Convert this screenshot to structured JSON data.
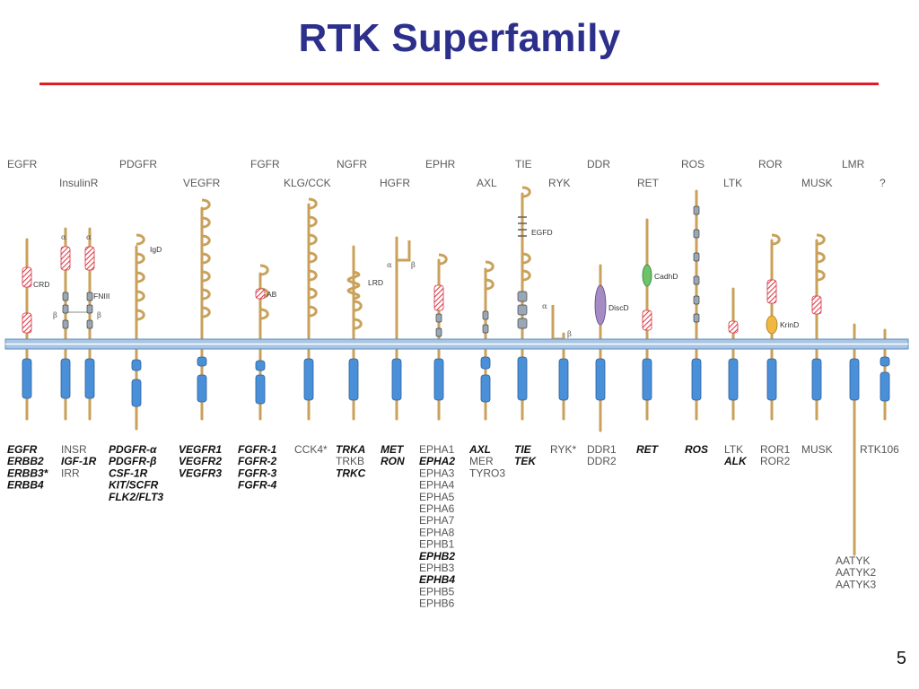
{
  "title": "RTK Superfamily",
  "page_number": "5",
  "colors": {
    "title": "#2c2f8c",
    "rule": "#e01c24",
    "membrane": "#a8c6e3",
    "stalk": "#c9a15a",
    "kinase": "#4a90d9"
  },
  "family_labels": [
    "EGFR",
    "InsulinR",
    "PDGFR",
    "VEGFR",
    "FGFR",
    "KLG/CCK",
    "NGFR",
    "HGFR",
    "EPHR",
    "AXL",
    "TIE",
    "RYK",
    "DDR",
    "RET",
    "ROS",
    "LTK",
    "ROR",
    "MUSK",
    "LMR",
    "?"
  ],
  "domain_labels": [
    "CRD",
    "FNIII",
    "IgD",
    "AB",
    "LRD",
    "EGFD",
    "DiscD",
    "CadhD",
    "KrinD"
  ],
  "greek": {
    "alpha": "α",
    "beta": "β"
  },
  "members": [
    {
      "lines": [
        {
          "t": "EGFR",
          "b": true
        },
        {
          "t": "ERBB2",
          "b": true
        },
        {
          "t": "ERBB3*",
          "b": true
        },
        {
          "t": "ERBB4",
          "b": true
        }
      ]
    },
    {
      "lines": [
        {
          "t": "INSR",
          "b": false
        },
        {
          "t": "IGF-1R",
          "b": true
        },
        {
          "t": "IRR",
          "b": false
        }
      ]
    },
    {
      "lines": [
        {
          "t": "PDGFR-α",
          "b": true
        },
        {
          "t": "PDGFR-β",
          "b": true
        },
        {
          "t": "CSF-1R",
          "b": true
        },
        {
          "t": "KIT/SCFR",
          "b": true
        },
        {
          "t": "FLK2/FLT3",
          "b": true
        }
      ]
    },
    {
      "lines": [
        {
          "t": "VEGFR1",
          "b": true
        },
        {
          "t": "VEGFR2",
          "b": true
        },
        {
          "t": "VEGFR3",
          "b": true
        }
      ]
    },
    {
      "lines": [
        {
          "t": "FGFR-1",
          "b": true
        },
        {
          "t": "FGFR-2",
          "b": true
        },
        {
          "t": "FGFR-3",
          "b": true
        },
        {
          "t": "FGFR-4",
          "b": true
        }
      ]
    },
    {
      "lines": [
        {
          "t": "CCK4*",
          "b": false
        }
      ]
    },
    {
      "lines": [
        {
          "t": "TRKA",
          "b": true
        },
        {
          "t": "TRKB",
          "b": false
        },
        {
          "t": "TRKC",
          "b": true
        }
      ]
    },
    {
      "lines": [
        {
          "t": "MET",
          "b": true
        },
        {
          "t": "RON",
          "b": true
        }
      ]
    },
    {
      "lines": [
        {
          "t": "EPHA1",
          "b": false
        },
        {
          "t": "EPHA2",
          "b": true
        },
        {
          "t": "EPHA3",
          "b": false
        },
        {
          "t": "EPHA4",
          "b": false
        },
        {
          "t": "EPHA5",
          "b": false
        },
        {
          "t": "EPHA6",
          "b": false
        },
        {
          "t": "EPHA7",
          "b": false
        },
        {
          "t": "EPHA8",
          "b": false
        },
        {
          "t": "EPHB1",
          "b": false
        },
        {
          "t": "EPHB2",
          "b": true
        },
        {
          "t": "EPHB3",
          "b": false
        },
        {
          "t": "EPHB4",
          "b": true
        },
        {
          "t": "EPHB5",
          "b": false
        },
        {
          "t": "EPHB6",
          "b": false
        }
      ]
    },
    {
      "lines": [
        {
          "t": "AXL",
          "b": true
        },
        {
          "t": "MER",
          "b": false
        },
        {
          "t": "TYRO3",
          "b": false
        }
      ]
    },
    {
      "lines": [
        {
          "t": "TIE",
          "b": true
        },
        {
          "t": "TEK",
          "b": true
        }
      ]
    },
    {
      "lines": [
        {
          "t": "RYK*",
          "b": false
        }
      ]
    },
    {
      "lines": [
        {
          "t": "DDR1",
          "b": false
        },
        {
          "t": "DDR2",
          "b": false
        }
      ]
    },
    {
      "lines": [
        {
          "t": "RET",
          "b": true
        }
      ]
    },
    {
      "lines": [
        {
          "t": "ROS",
          "b": true
        }
      ]
    },
    {
      "lines": [
        {
          "t": "LTK",
          "b": false
        },
        {
          "t": "ALK",
          "b": true
        }
      ]
    },
    {
      "lines": [
        {
          "t": "ROR1",
          "b": false
        },
        {
          "t": "ROR2",
          "b": false
        }
      ]
    },
    {
      "lines": [
        {
          "t": "MUSK",
          "b": false
        }
      ]
    },
    {
      "lines": [
        {
          "t": "RTK106",
          "b": false
        }
      ]
    },
    {
      "lines": [
        {
          "t": "AATYK",
          "b": false
        },
        {
          "t": "AATYK2",
          "b": false
        },
        {
          "t": "AATYK3",
          "b": false
        }
      ]
    }
  ]
}
